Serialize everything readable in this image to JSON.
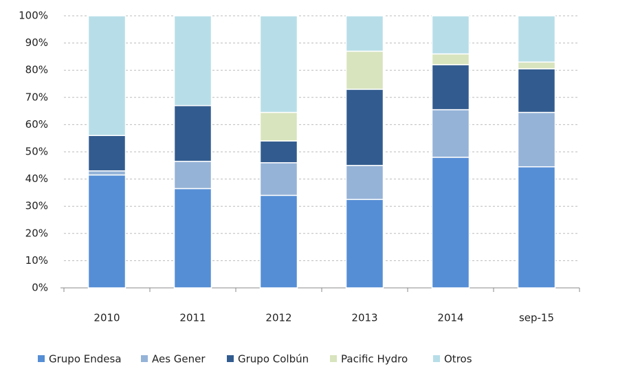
{
  "chart_data": {
    "type": "stacked_bar",
    "categories": [
      "2010",
      "2011",
      "2012",
      "2013",
      "2014",
      "sep-15"
    ],
    "series": [
      {
        "name": "Grupo Endesa",
        "color": "#558ed5",
        "values": [
          41.5,
          36.5,
          34,
          32.5,
          48,
          44.5
        ]
      },
      {
        "name": "Aes Gener",
        "color": "#95b3d7",
        "values": [
          1.5,
          10,
          12,
          12.5,
          17.5,
          20
        ]
      },
      {
        "name": "Grupo Colbún",
        "color": "#325c8f",
        "values": [
          13,
          20.5,
          8,
          28,
          16.5,
          16
        ]
      },
      {
        "name": "Pacific Hydro",
        "color": "#d7e4bd",
        "values": [
          0,
          0,
          10.5,
          14,
          4,
          2.5
        ]
      },
      {
        "name": "Otros",
        "color": "#b7dee8",
        "values": [
          44,
          33,
          35.5,
          13,
          14,
          17
        ]
      }
    ],
    "ylim": [
      0,
      100
    ],
    "yticks": [
      {
        "value": 0,
        "label": "0%"
      },
      {
        "value": 10,
        "label": "10%"
      },
      {
        "value": 20,
        "label": "20%"
      },
      {
        "value": 30,
        "label": "30%"
      },
      {
        "value": 40,
        "label": "40%"
      },
      {
        "value": 50,
        "label": "50%"
      },
      {
        "value": 60,
        "label": "60%"
      },
      {
        "value": 70,
        "label": "70%"
      },
      {
        "value": 80,
        "label": "80%"
      },
      {
        "value": 90,
        "label": "90%"
      },
      {
        "value": 100,
        "label": "100%"
      }
    ],
    "grid": true,
    "legend": "bottom"
  }
}
